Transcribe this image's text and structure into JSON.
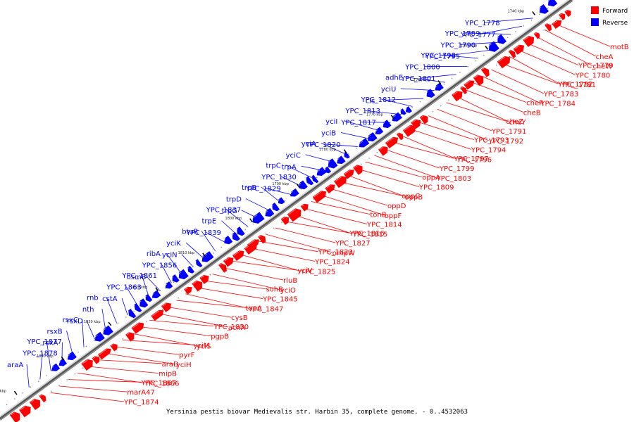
{
  "caption": "Yersinia pestis biovar Medievalis str. Harbin 35, complete genome. - 0..4532063",
  "legend": {
    "forward_label": "Forward",
    "reverse_label": "Reverse",
    "forward_color": "#ff0000",
    "reverse_color": "#0000ff"
  },
  "axis_ticks": [
    "1740 kbp",
    "1750 kbp",
    "1760 kbp",
    "1770 kbp",
    "1780 kbp",
    "1790 kbp",
    "1800 kbp",
    "1810 kbp",
    "1820 kbp",
    "1830 kbp",
    "1840 kbp",
    "1850 kbp"
  ],
  "reverse_genes": [
    "araA",
    "YPC_1878",
    "YPC_1877",
    "rsxA",
    "rsxB",
    "rsxC",
    "rsxD",
    "nth",
    "rnb",
    "cstA",
    "YPC_1863",
    "YPC_1861",
    "osmB",
    "YPC_1856",
    "ribA",
    "yciN",
    "yciK",
    "btuR",
    "YPC_1839",
    "trpE",
    "YPC_1837",
    "trpG",
    "trpD",
    "trpB",
    "YPC_1829",
    "YPC_1830",
    "trpC",
    "trpA",
    "yciC",
    "yciA",
    "YPC_1820",
    "yciB",
    "yciI",
    "YPC_1817",
    "YPC_1813",
    "YPC_1812",
    "cls",
    "yciU",
    "adhE",
    "YPC_1801",
    "YPC_1800",
    "YPC_1798",
    "YPC_1795",
    "YPC_1790",
    "YPC_1789",
    "YPC_1777",
    "YPC_1778"
  ],
  "forward_genes": [
    "motB",
    "cheA",
    "cheW",
    "YPC_1779",
    "YPC_1780",
    "YPC_1781",
    "YPC_1782",
    "YPC_1783",
    "YPC_1784",
    "cheR",
    "cheB",
    "cheY",
    "cheZ",
    "YPC_1791",
    "YPC_1792",
    "YPC_1793",
    "YPC_1794",
    "YPC_1796",
    "YPC_1797",
    "YPC_1799",
    "YPC_1803",
    "oppA",
    "YPC_1809",
    "oppB",
    "oppC",
    "oppD",
    "oppF",
    "tonB",
    "YPC_1814",
    "YPC_1815",
    "YPC_1816",
    "YPC_1827",
    "ompW",
    "YPC_1823",
    "YPC_1824",
    "YPC_1825",
    "yciV",
    "rluB",
    "yciO",
    "sohB",
    "YPC_1845",
    "YPC_1847",
    "topA",
    "cysB",
    "acnA",
    "YPC_1850",
    "pgpB",
    "yciS",
    "yciM",
    "pyrF",
    "yciH",
    "araD",
    "mipB",
    "YPC_1866",
    "YPC_1867",
    "marA47",
    "YPC_1874"
  ]
}
